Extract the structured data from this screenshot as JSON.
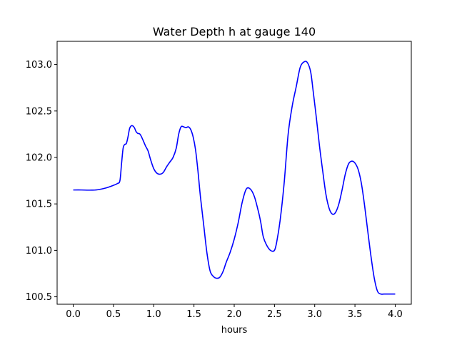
{
  "chart_data": {
    "type": "line",
    "title": "Water Depth h at gauge 140",
    "xlabel": "hours",
    "ylabel": "",
    "xlim": [
      -0.2,
      4.2
    ],
    "ylim": [
      100.42,
      103.25
    ],
    "grid": false,
    "xticks": [
      0.0,
      0.5,
      1.0,
      1.5,
      2.0,
      2.5,
      3.0,
      3.5,
      4.0
    ],
    "xtick_labels": [
      "0.0",
      "0.5",
      "1.0",
      "1.5",
      "2.0",
      "2.5",
      "3.0",
      "3.5",
      "4.0"
    ],
    "yticks": [
      100.5,
      101.0,
      101.5,
      102.0,
      102.5,
      103.0
    ],
    "ytick_labels": [
      "100.5",
      "101.0",
      "101.5",
      "102.0",
      "102.5",
      "103.0"
    ],
    "series": [
      {
        "color": "#0000ff",
        "x": [
          0.0,
          0.1,
          0.2,
          0.3,
          0.4,
          0.5,
          0.55,
          0.58,
          0.6,
          0.62,
          0.64,
          0.66,
          0.68,
          0.7,
          0.72,
          0.74,
          0.76,
          0.78,
          0.8,
          0.83,
          0.86,
          0.88,
          0.9,
          0.93,
          0.96,
          1.0,
          1.04,
          1.08,
          1.12,
          1.16,
          1.2,
          1.24,
          1.28,
          1.31,
          1.34,
          1.37,
          1.4,
          1.43,
          1.46,
          1.49,
          1.52,
          1.55,
          1.58,
          1.62,
          1.66,
          1.7,
          1.74,
          1.78,
          1.82,
          1.86,
          1.9,
          1.95,
          2.0,
          2.05,
          2.1,
          2.15,
          2.2,
          2.25,
          2.3,
          2.33,
          2.36,
          2.4,
          2.45,
          2.5,
          2.53,
          2.57,
          2.62,
          2.67,
          2.72,
          2.77,
          2.82,
          2.87,
          2.91,
          2.95,
          2.98,
          3.02,
          3.06,
          3.1,
          3.14,
          3.18,
          3.22,
          3.26,
          3.3,
          3.34,
          3.38,
          3.42,
          3.46,
          3.5,
          3.54,
          3.58,
          3.62,
          3.66,
          3.7,
          3.74,
          3.78,
          3.82,
          3.86,
          3.9,
          3.94,
          3.97,
          4.0
        ],
        "y": [
          101.65,
          101.65,
          101.648,
          101.652,
          101.67,
          101.7,
          101.72,
          101.75,
          101.93,
          102.1,
          102.14,
          102.15,
          102.22,
          102.31,
          102.34,
          102.34,
          102.32,
          102.28,
          102.26,
          102.25,
          102.2,
          102.16,
          102.12,
          102.07,
          101.98,
          101.88,
          101.83,
          101.82,
          101.84,
          101.9,
          101.95,
          102.0,
          102.1,
          102.25,
          102.33,
          102.33,
          102.32,
          102.33,
          102.3,
          102.22,
          102.08,
          101.85,
          101.58,
          101.28,
          100.98,
          100.78,
          100.72,
          100.7,
          100.71,
          100.77,
          100.87,
          100.98,
          101.12,
          101.3,
          101.52,
          101.66,
          101.66,
          101.58,
          101.42,
          101.3,
          101.15,
          101.06,
          101.0,
          101.0,
          101.1,
          101.32,
          101.72,
          102.25,
          102.55,
          102.76,
          102.97,
          103.03,
          103.02,
          102.92,
          102.72,
          102.43,
          102.12,
          101.85,
          101.6,
          101.45,
          101.39,
          101.41,
          101.5,
          101.65,
          101.82,
          101.93,
          101.96,
          101.94,
          101.87,
          101.72,
          101.48,
          101.2,
          100.93,
          100.7,
          100.56,
          100.53,
          100.53,
          100.53,
          100.53,
          100.53,
          100.53
        ]
      }
    ]
  }
}
